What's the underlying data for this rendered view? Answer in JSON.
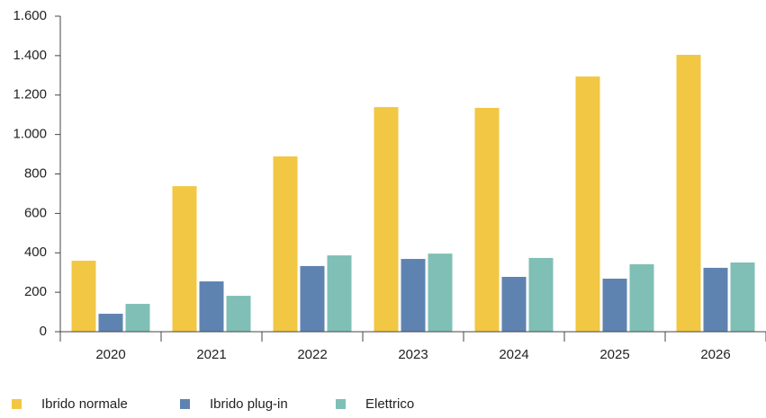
{
  "chart_data": {
    "type": "bar",
    "categories": [
      "2020",
      "2021",
      "2022",
      "2023",
      "2024",
      "2025",
      "2026"
    ],
    "series": [
      {
        "name": "Ibrido normale",
        "color": "#f2c744",
        "values": [
          360,
          738,
          889,
          1139,
          1135,
          1294,
          1404
        ]
      },
      {
        "name": "Ibrido plug-in",
        "color": "#5f83b1",
        "values": [
          91,
          255,
          333,
          369,
          278,
          269,
          324
        ]
      },
      {
        "name": "Elettrico",
        "color": "#7fbfb5",
        "values": [
          141,
          182,
          387,
          396,
          374,
          342,
          351
        ]
      }
    ],
    "ylim": [
      0,
      1600
    ],
    "yticks": [
      0,
      200,
      400,
      600,
      800,
      {
        "value": 1000,
        "label": "1.000"
      },
      {
        "value": 1200,
        "label": "1.200"
      },
      {
        "value": 1400,
        "label": "1.400"
      },
      {
        "value": 1600,
        "label": "1.600"
      }
    ],
    "grid": false,
    "legend": "bottom"
  }
}
